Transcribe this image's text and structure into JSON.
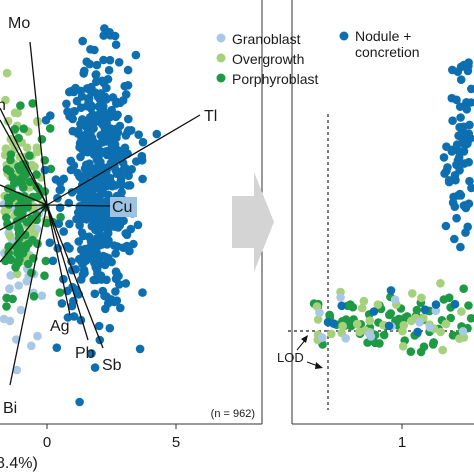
{
  "legend": {
    "items": [
      {
        "label": "Granoblast",
        "color": "#a8c8e6"
      },
      {
        "label": "Overgrowth",
        "color": "#a6d17c"
      },
      {
        "label": "Porphyroblast",
        "color": "#1f9a44"
      },
      {
        "label": "Nodule +",
        "label2": "concretion",
        "color": "#0d6fb0"
      }
    ]
  },
  "chart_data": [
    {
      "type": "scatter",
      "subtype": "biplot",
      "xlabel": "8.4%)",
      "x_ticks": [
        "0",
        "5"
      ],
      "n_label": "(n = 962)",
      "loadings": [
        {
          "name": "Mo"
        },
        {
          "name": "Tl"
        },
        {
          "name": "Cu"
        },
        {
          "name": "Ag"
        },
        {
          "name": "Pb"
        },
        {
          "name": "Sb"
        },
        {
          "name": "Bi"
        },
        {
          "name": "n"
        }
      ],
      "series": [
        {
          "name": "Nodule + concretion",
          "color": "#0d6fb0",
          "center": [
            2.0,
            0.5
          ],
          "spread": [
            1.3,
            3.2
          ]
        },
        {
          "name": "Porphyroblast",
          "color": "#1f9a44",
          "center": [
            -1.0,
            0.0
          ],
          "spread": [
            1.0,
            2.2
          ]
        },
        {
          "name": "Overgrowth",
          "color": "#a6d17c",
          "center": [
            -1.2,
            0.3
          ],
          "spread": [
            1.0,
            2.4
          ]
        },
        {
          "name": "Granoblast",
          "color": "#a8c8e6",
          "center": [
            -1.0,
            -1.5
          ],
          "spread": [
            1.0,
            2.0
          ]
        }
      ]
    },
    {
      "type": "scatter",
      "x_ticks": [
        "1"
      ],
      "annotations": [
        "LOD"
      ],
      "series": [
        {
          "name": "Nodule + concretion",
          "color": "#0d6fb0"
        },
        {
          "name": "Porphyroblast",
          "color": "#1f9a44"
        },
        {
          "name": "Overgrowth",
          "color": "#a6d17c"
        },
        {
          "name": "Granoblast",
          "color": "#a8c8e6"
        }
      ]
    }
  ]
}
